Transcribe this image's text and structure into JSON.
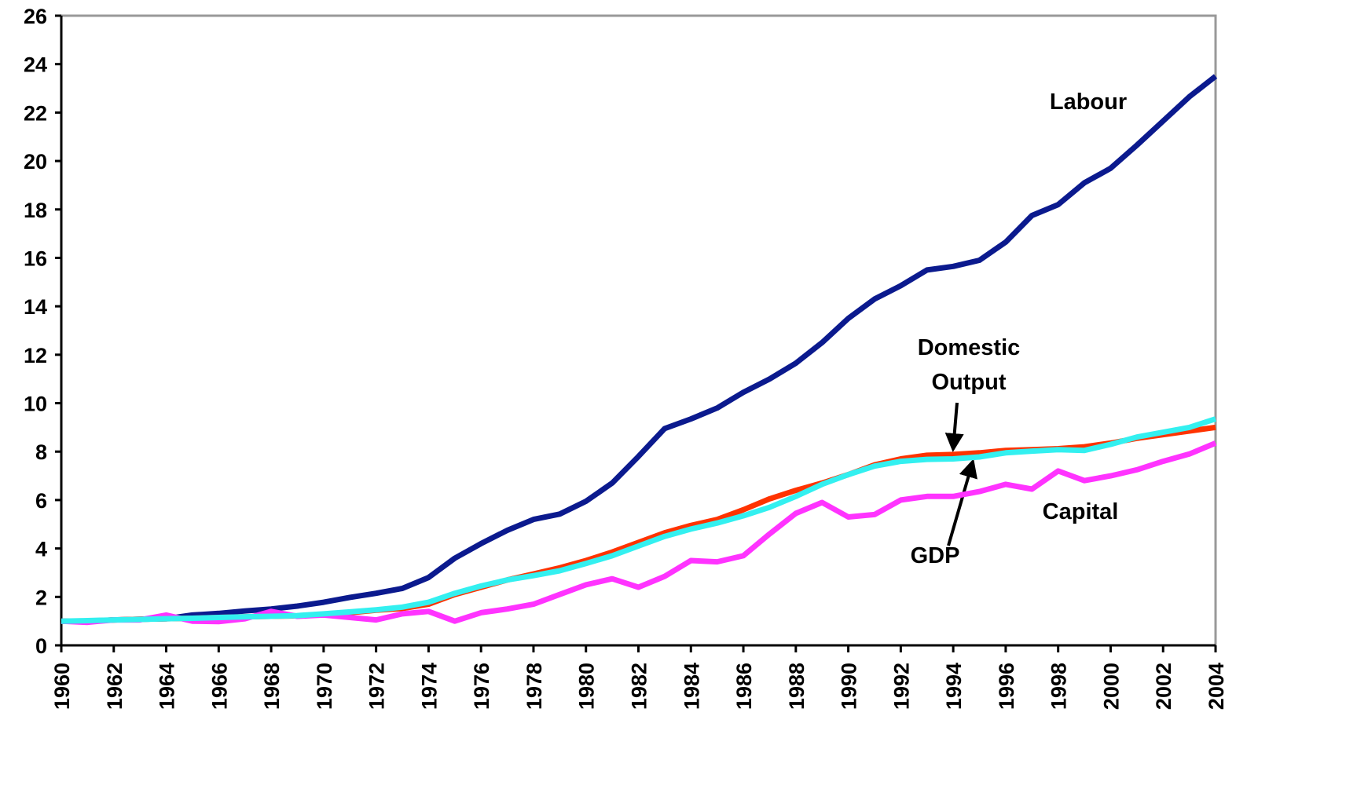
{
  "chart_data": {
    "type": "line",
    "x": [
      1960,
      1961,
      1962,
      1963,
      1964,
      1965,
      1966,
      1967,
      1968,
      1969,
      1970,
      1971,
      1972,
      1973,
      1974,
      1975,
      1976,
      1977,
      1978,
      1979,
      1980,
      1981,
      1982,
      1983,
      1984,
      1985,
      1986,
      1987,
      1988,
      1989,
      1990,
      1991,
      1992,
      1993,
      1994,
      1995,
      1996,
      1997,
      1998,
      1999,
      2000,
      2001,
      2002,
      2003,
      2004
    ],
    "xlim": [
      1960,
      2004
    ],
    "xticks": [
      1960,
      1962,
      1964,
      1966,
      1968,
      1970,
      1972,
      1974,
      1976,
      1978,
      1980,
      1982,
      1984,
      1986,
      1988,
      1990,
      1992,
      1994,
      1996,
      1998,
      2000,
      2002,
      2004
    ],
    "ylim": [
      0,
      26
    ],
    "yticks": [
      0,
      2,
      4,
      6,
      8,
      10,
      12,
      14,
      16,
      18,
      20,
      22,
      24,
      26
    ],
    "grid": false,
    "series": [
      {
        "name": "Labour",
        "color": "#0b1a8e",
        "values": [
          1.0,
          1.0,
          1.05,
          1.08,
          1.1,
          1.25,
          1.32,
          1.42,
          1.5,
          1.62,
          1.78,
          1.98,
          2.15,
          2.35,
          2.8,
          3.6,
          4.2,
          4.75,
          5.2,
          5.42,
          5.95,
          6.7,
          7.8,
          8.95,
          9.35,
          9.8,
          10.45,
          11.0,
          11.65,
          12.5,
          13.5,
          14.3,
          14.85,
          15.5,
          15.65,
          15.9,
          16.65,
          17.75,
          18.2,
          19.1,
          19.7,
          20.65,
          21.65,
          22.65,
          23.5
        ]
      },
      {
        "name": "Domestic Output",
        "color": "#ff3300",
        "values": [
          1.0,
          1.0,
          1.05,
          1.08,
          1.1,
          1.12,
          1.15,
          1.18,
          1.2,
          1.22,
          1.28,
          1.35,
          1.45,
          1.52,
          1.7,
          2.1,
          2.4,
          2.7,
          2.95,
          3.2,
          3.5,
          3.85,
          4.25,
          4.65,
          4.95,
          5.2,
          5.6,
          6.05,
          6.4,
          6.7,
          7.05,
          7.45,
          7.7,
          7.85,
          7.88,
          7.95,
          8.05,
          8.08,
          8.12,
          8.2,
          8.35,
          8.55,
          8.7,
          8.85,
          9.0
        ]
      },
      {
        "name": "Capital",
        "color": "#ff33ff",
        "values": [
          1.0,
          0.95,
          1.05,
          1.05,
          1.25,
          1.0,
          0.98,
          1.1,
          1.4,
          1.2,
          1.25,
          1.15,
          1.05,
          1.3,
          1.4,
          1.0,
          1.35,
          1.5,
          1.7,
          2.1,
          2.5,
          2.75,
          2.4,
          2.85,
          3.5,
          3.45,
          3.7,
          4.6,
          5.45,
          5.9,
          5.3,
          5.4,
          6.0,
          6.15,
          6.15,
          6.35,
          6.65,
          6.45,
          7.2,
          6.8,
          7.0,
          7.25,
          7.6,
          7.9,
          8.35
        ]
      },
      {
        "name": "GDP",
        "color": "#33f0f0",
        "values": [
          1.0,
          1.02,
          1.05,
          1.07,
          1.1,
          1.12,
          1.15,
          1.18,
          1.2,
          1.23,
          1.3,
          1.38,
          1.47,
          1.58,
          1.78,
          2.15,
          2.45,
          2.7,
          2.88,
          3.08,
          3.38,
          3.7,
          4.1,
          4.5,
          4.8,
          5.05,
          5.35,
          5.7,
          6.15,
          6.65,
          7.05,
          7.4,
          7.6,
          7.68,
          7.7,
          7.78,
          7.95,
          8.02,
          8.08,
          8.05,
          8.3,
          8.6,
          8.8,
          9.0,
          9.35
        ]
      }
    ]
  }
}
